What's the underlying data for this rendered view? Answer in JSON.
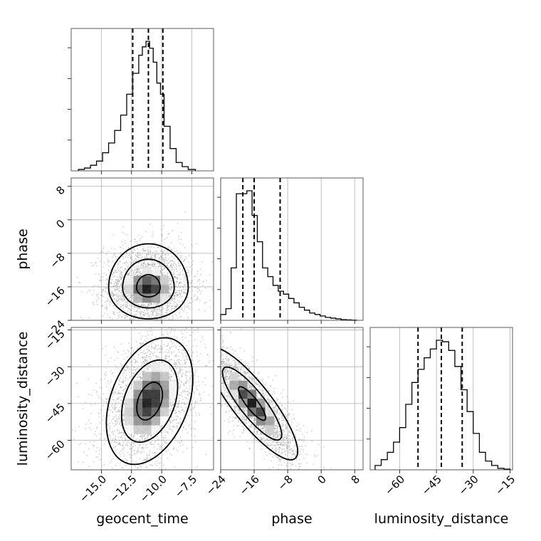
{
  "chart_data": {
    "type": "corner",
    "parameters": [
      "geocent_time",
      "phase",
      "luminosity_distance"
    ],
    "labels": {
      "geocent_time": "geocent_time",
      "phase": "phase",
      "luminosity_distance": "luminosity_distance"
    },
    "ranges": {
      "geocent_time": [
        -17.5,
        -5.7
      ],
      "phase": [
        -24,
        10
      ],
      "luminosity_distance": [
        -72,
        -14
      ]
    },
    "ticks": {
      "geocent_time": [
        -15.0,
        -12.5,
        -10.0,
        -7.5
      ],
      "phase": [
        -24,
        -16,
        -8,
        0,
        8
      ],
      "luminosity_distance": [
        -60,
        -45,
        -30,
        -15
      ]
    },
    "tick_labels": {
      "geocent_time": [
        "−15.0",
        "−12.5",
        "−10.0",
        "−7.5"
      ],
      "phase": [
        "−24",
        "−16",
        "−8",
        "0",
        "8"
      ],
      "luminosity_distance": [
        "−60",
        "−45",
        "−30",
        "−15"
      ]
    },
    "quantiles": {
      "geocent_time": [
        -12.4,
        -11.1,
        -9.9
      ],
      "phase": [
        -18.7,
        -16.0,
        -9.8
      ],
      "luminosity_distance": [
        -52.5,
        -43.0,
        -34.5
      ]
    },
    "histograms": {
      "geocent_time": {
        "edges": [
          -16.9,
          -16.4,
          -15.9,
          -15.4,
          -14.9,
          -14.4,
          -13.9,
          -13.4,
          -12.9,
          -12.4,
          -11.9,
          -11.6,
          -11.3,
          -11.0,
          -10.7,
          -10.4,
          -10.1,
          -9.8,
          -9.3,
          -8.8,
          -8.3,
          -7.8,
          -7.2
        ],
        "counts": [
          0.01,
          0.02,
          0.04,
          0.07,
          0.13,
          0.2,
          0.29,
          0.4,
          0.55,
          0.7,
          0.83,
          0.89,
          0.93,
          0.88,
          0.78,
          0.63,
          0.55,
          0.32,
          0.16,
          0.06,
          0.03,
          0.01
        ]
      },
      "phase": {
        "edges": [
          -24.0,
          -22.75,
          -21.5,
          -20.25,
          -19.0,
          -17.75,
          -16.5,
          -15.25,
          -14.0,
          -12.75,
          -11.5,
          -10.25,
          -9.0,
          -7.75,
          -6.5,
          -5.25,
          -4.0,
          -2.75,
          -1.5,
          -0.25,
          1.0,
          2.25,
          3.5,
          4.75,
          6.0,
          7.25,
          8.5
        ],
        "counts": [
          0.04,
          0.08,
          0.36,
          0.87,
          0.87,
          0.89,
          0.72,
          0.54,
          0.36,
          0.3,
          0.24,
          0.2,
          0.18,
          0.15,
          0.12,
          0.09,
          0.07,
          0.05,
          0.04,
          0.03,
          0.02,
          0.015,
          0.01,
          0.005,
          0.003,
          0.001
        ]
      },
      "luminosity_distance": {
        "edges": [
          -70.0,
          -67.5,
          -65.0,
          -62.5,
          -60.0,
          -57.5,
          -55.0,
          -52.5,
          -50.0,
          -47.5,
          -45.0,
          -42.5,
          -40.0,
          -37.5,
          -35.0,
          -32.5,
          -30.0,
          -27.5,
          -25.0,
          -22.5,
          -20.0,
          -17.5,
          -15.0
        ],
        "counts": [
          0.03,
          0.07,
          0.12,
          0.19,
          0.29,
          0.45,
          0.6,
          0.69,
          0.77,
          0.83,
          0.89,
          0.88,
          0.82,
          0.71,
          0.55,
          0.4,
          0.25,
          0.12,
          0.06,
          0.03,
          0.01,
          0.005
        ]
      }
    },
    "pairs": [
      {
        "x": "geocent_time",
        "y": "phase",
        "centroid": [
          -11.1,
          -16.2
        ],
        "spread": [
          1.15,
          2.6
        ],
        "corr": 0.0,
        "skew_y": 0.45,
        "n_points": 2600,
        "contours": [
          {
            "level": 0.39,
            "scale": 0.55
          },
          {
            "level": 0.86,
            "scale": 1.2
          },
          {
            "level": 0.99,
            "scale": 1.85
          }
        ]
      },
      {
        "x": "geocent_time",
        "y": "luminosity_distance",
        "centroid": [
          -11.0,
          -44.0
        ],
        "spread": [
          1.25,
          9.0
        ],
        "corr": 0.35,
        "skew_y": 0.0,
        "n_points": 2600,
        "contours": [
          {
            "level": 0.39,
            "scale": 0.55
          },
          {
            "level": 0.86,
            "scale": 1.2
          },
          {
            "level": 0.99,
            "scale": 1.85
          }
        ]
      },
      {
        "x": "phase",
        "y": "luminosity_distance",
        "centroid": [
          -16.5,
          -45.0
        ],
        "spread": [
          3.8,
          8.0
        ],
        "corr": -0.85,
        "skew_y": 0.0,
        "n_points": 2600,
        "contours": [
          {
            "level": 0.39,
            "scale": 0.55
          },
          {
            "level": 0.86,
            "scale": 1.2
          },
          {
            "level": 0.99,
            "scale": 1.85
          }
        ]
      }
    ],
    "grid": true
  }
}
